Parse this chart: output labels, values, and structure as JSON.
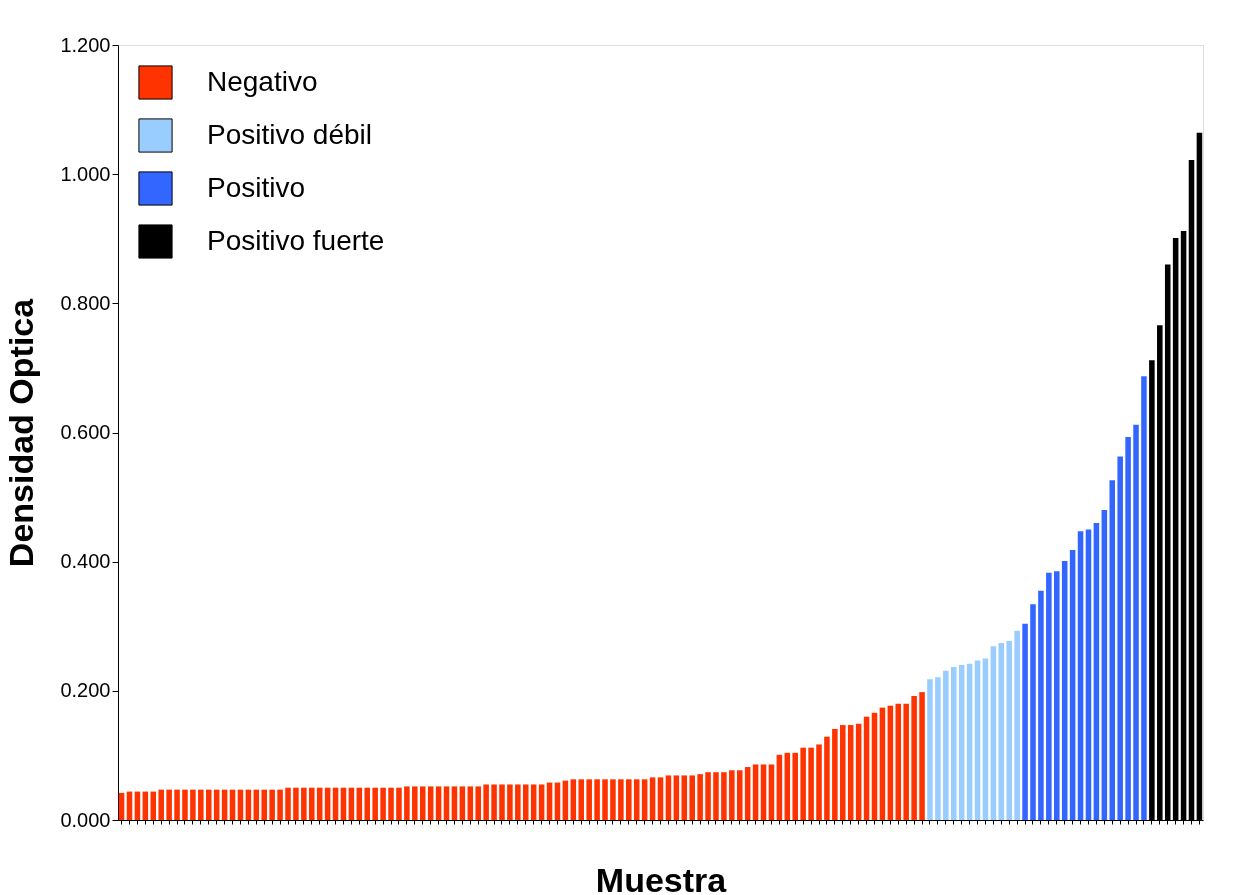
{
  "chart_data": {
    "type": "bar",
    "xlabel": "Muestra",
    "ylabel": "Densidad  Optica",
    "categories": [
      null,
      null,
      null,
      null,
      null,
      null,
      null,
      null,
      null,
      null,
      null,
      null,
      null,
      null,
      null,
      null,
      null,
      null,
      null,
      null,
      null,
      null,
      null,
      null,
      null,
      null,
      null,
      null,
      null,
      null,
      null,
      null,
      null,
      null,
      null,
      null,
      null,
      null,
      null,
      null,
      null,
      null,
      null,
      null,
      null,
      null,
      null,
      null,
      null,
      null,
      null,
      null,
      null,
      null,
      null,
      null,
      null,
      null,
      null,
      null,
      null,
      null,
      null,
      null,
      null,
      null,
      null,
      null,
      null,
      null,
      null,
      null,
      null,
      null,
      null,
      null,
      null,
      null,
      null,
      null,
      null,
      null,
      null,
      null,
      null,
      null,
      null,
      null,
      null,
      null,
      null,
      null,
      null,
      null,
      null,
      null,
      null,
      null,
      null,
      null,
      null,
      null,
      null,
      null,
      null,
      null,
      null,
      null,
      null,
      null,
      null,
      null,
      null,
      null,
      null,
      null,
      null,
      null,
      null,
      null,
      null,
      null,
      null,
      null,
      null,
      null,
      null,
      null,
      null,
      null,
      null,
      null,
      null,
      null,
      null,
      null,
      null
    ],
    "series": [
      {
        "name": "Negativo",
        "color": "#ff3300",
        "values": [
          0.042,
          0.044,
          0.044,
          0.044,
          0.044,
          0.047,
          0.047,
          0.047,
          0.047,
          0.047,
          0.047,
          0.047,
          0.047,
          0.047,
          0.047,
          0.047,
          0.047,
          0.047,
          0.047,
          0.047,
          0.047,
          0.05,
          0.05,
          0.05,
          0.05,
          0.05,
          0.05,
          0.05,
          0.05,
          0.05,
          0.05,
          0.05,
          0.05,
          0.05,
          0.05,
          0.05,
          0.052,
          0.052,
          0.052,
          0.052,
          0.052,
          0.052,
          0.052,
          0.052,
          0.052,
          0.052,
          0.055,
          0.055,
          0.055,
          0.055,
          0.055,
          0.055,
          0.055,
          0.055,
          0.058,
          0.058,
          0.061,
          0.063,
          0.063,
          0.063,
          0.063,
          0.063,
          0.063,
          0.063,
          0.063,
          0.063,
          0.063,
          0.066,
          0.066,
          0.069,
          0.069,
          0.069,
          0.069,
          0.071,
          0.074,
          0.074,
          0.074,
          0.077,
          0.077,
          0.082,
          0.086,
          0.086,
          0.086,
          0.101,
          0.104,
          0.104,
          0.112,
          0.112,
          0.117,
          0.129,
          0.141,
          0.147,
          0.147,
          0.149,
          0.16,
          0.166,
          0.174,
          0.177,
          0.18,
          0.18,
          0.192,
          0.198,
          null,
          null,
          null,
          null,
          null,
          null,
          null,
          null,
          null,
          null,
          null,
          null,
          null,
          null,
          null,
          null,
          null,
          null,
          null,
          null,
          null,
          null,
          null,
          null,
          null,
          null,
          null,
          null,
          null,
          null,
          null,
          null,
          null,
          null,
          null
        ]
      },
      {
        "name": "Positivo débil",
        "color": "#99ccff",
        "values": [
          null,
          null,
          null,
          null,
          null,
          null,
          null,
          null,
          null,
          null,
          null,
          null,
          null,
          null,
          null,
          null,
          null,
          null,
          null,
          null,
          null,
          null,
          null,
          null,
          null,
          null,
          null,
          null,
          null,
          null,
          null,
          null,
          null,
          null,
          null,
          null,
          null,
          null,
          null,
          null,
          null,
          null,
          null,
          null,
          null,
          null,
          null,
          null,
          null,
          null,
          null,
          null,
          null,
          null,
          null,
          null,
          null,
          null,
          null,
          null,
          null,
          null,
          null,
          null,
          null,
          null,
          null,
          null,
          null,
          null,
          null,
          null,
          null,
          null,
          null,
          null,
          null,
          null,
          null,
          null,
          null,
          null,
          null,
          null,
          null,
          null,
          null,
          null,
          null,
          null,
          null,
          null,
          null,
          null,
          null,
          null,
          null,
          null,
          null,
          null,
          null,
          null,
          0.218,
          0.221,
          0.231,
          0.237,
          0.24,
          0.242,
          0.247,
          0.25,
          0.269,
          0.274,
          0.277,
          0.293,
          null,
          null,
          null,
          null,
          null,
          null,
          null,
          null,
          null,
          null,
          null,
          null,
          null,
          null,
          null,
          null,
          null,
          null,
          null,
          null,
          null,
          null,
          null
        ]
      },
      {
        "name": "Positivo",
        "color": "#3366ff",
        "values": [
          null,
          null,
          null,
          null,
          null,
          null,
          null,
          null,
          null,
          null,
          null,
          null,
          null,
          null,
          null,
          null,
          null,
          null,
          null,
          null,
          null,
          null,
          null,
          null,
          null,
          null,
          null,
          null,
          null,
          null,
          null,
          null,
          null,
          null,
          null,
          null,
          null,
          null,
          null,
          null,
          null,
          null,
          null,
          null,
          null,
          null,
          null,
          null,
          null,
          null,
          null,
          null,
          null,
          null,
          null,
          null,
          null,
          null,
          null,
          null,
          null,
          null,
          null,
          null,
          null,
          null,
          null,
          null,
          null,
          null,
          null,
          null,
          null,
          null,
          null,
          null,
          null,
          null,
          null,
          null,
          null,
          null,
          null,
          null,
          null,
          null,
          null,
          null,
          null,
          null,
          null,
          null,
          null,
          null,
          null,
          null,
          null,
          null,
          null,
          null,
          null,
          null,
          null,
          null,
          null,
          null,
          null,
          null,
          null,
          null,
          null,
          null,
          null,
          null,
          0.304,
          0.334,
          0.355,
          0.383,
          0.385,
          0.401,
          0.418,
          0.447,
          0.45,
          0.46,
          0.48,
          0.526,
          0.563,
          0.593,
          0.612,
          0.687,
          null,
          null,
          null,
          null,
          null,
          null,
          null
        ]
      },
      {
        "name": "Positivo fuerte",
        "color": "#000000",
        "values": [
          null,
          null,
          null,
          null,
          null,
          null,
          null,
          null,
          null,
          null,
          null,
          null,
          null,
          null,
          null,
          null,
          null,
          null,
          null,
          null,
          null,
          null,
          null,
          null,
          null,
          null,
          null,
          null,
          null,
          null,
          null,
          null,
          null,
          null,
          null,
          null,
          null,
          null,
          null,
          null,
          null,
          null,
          null,
          null,
          null,
          null,
          null,
          null,
          null,
          null,
          null,
          null,
          null,
          null,
          null,
          null,
          null,
          null,
          null,
          null,
          null,
          null,
          null,
          null,
          null,
          null,
          null,
          null,
          null,
          null,
          null,
          null,
          null,
          null,
          null,
          null,
          null,
          null,
          null,
          null,
          null,
          null,
          null,
          null,
          null,
          null,
          null,
          null,
          null,
          null,
          null,
          null,
          null,
          null,
          null,
          null,
          null,
          null,
          null,
          null,
          null,
          null,
          null,
          null,
          null,
          null,
          null,
          null,
          null,
          null,
          null,
          null,
          null,
          null,
          null,
          null,
          null,
          null,
          null,
          null,
          null,
          null,
          null,
          null,
          null,
          null,
          null,
          null,
          null,
          null,
          0.712,
          0.766,
          0.86,
          0.901,
          0.912,
          1.022,
          1.064
        ]
      }
    ],
    "ylim": [
      0,
      1.2
    ],
    "yticks": [
      {
        "value": 0,
        "label": "0.000"
      },
      {
        "value": 0.2,
        "label": "0.200"
      },
      {
        "value": 0.4,
        "label": "0.400"
      },
      {
        "value": 0.6,
        "label": "0.600"
      },
      {
        "value": 0.8,
        "label": "0.800"
      },
      {
        "value": 1.0,
        "label": "1.000"
      },
      {
        "value": 1.2,
        "label": "1.200"
      }
    ],
    "tick_labels": "y",
    "grid": false,
    "legend": "top left"
  }
}
